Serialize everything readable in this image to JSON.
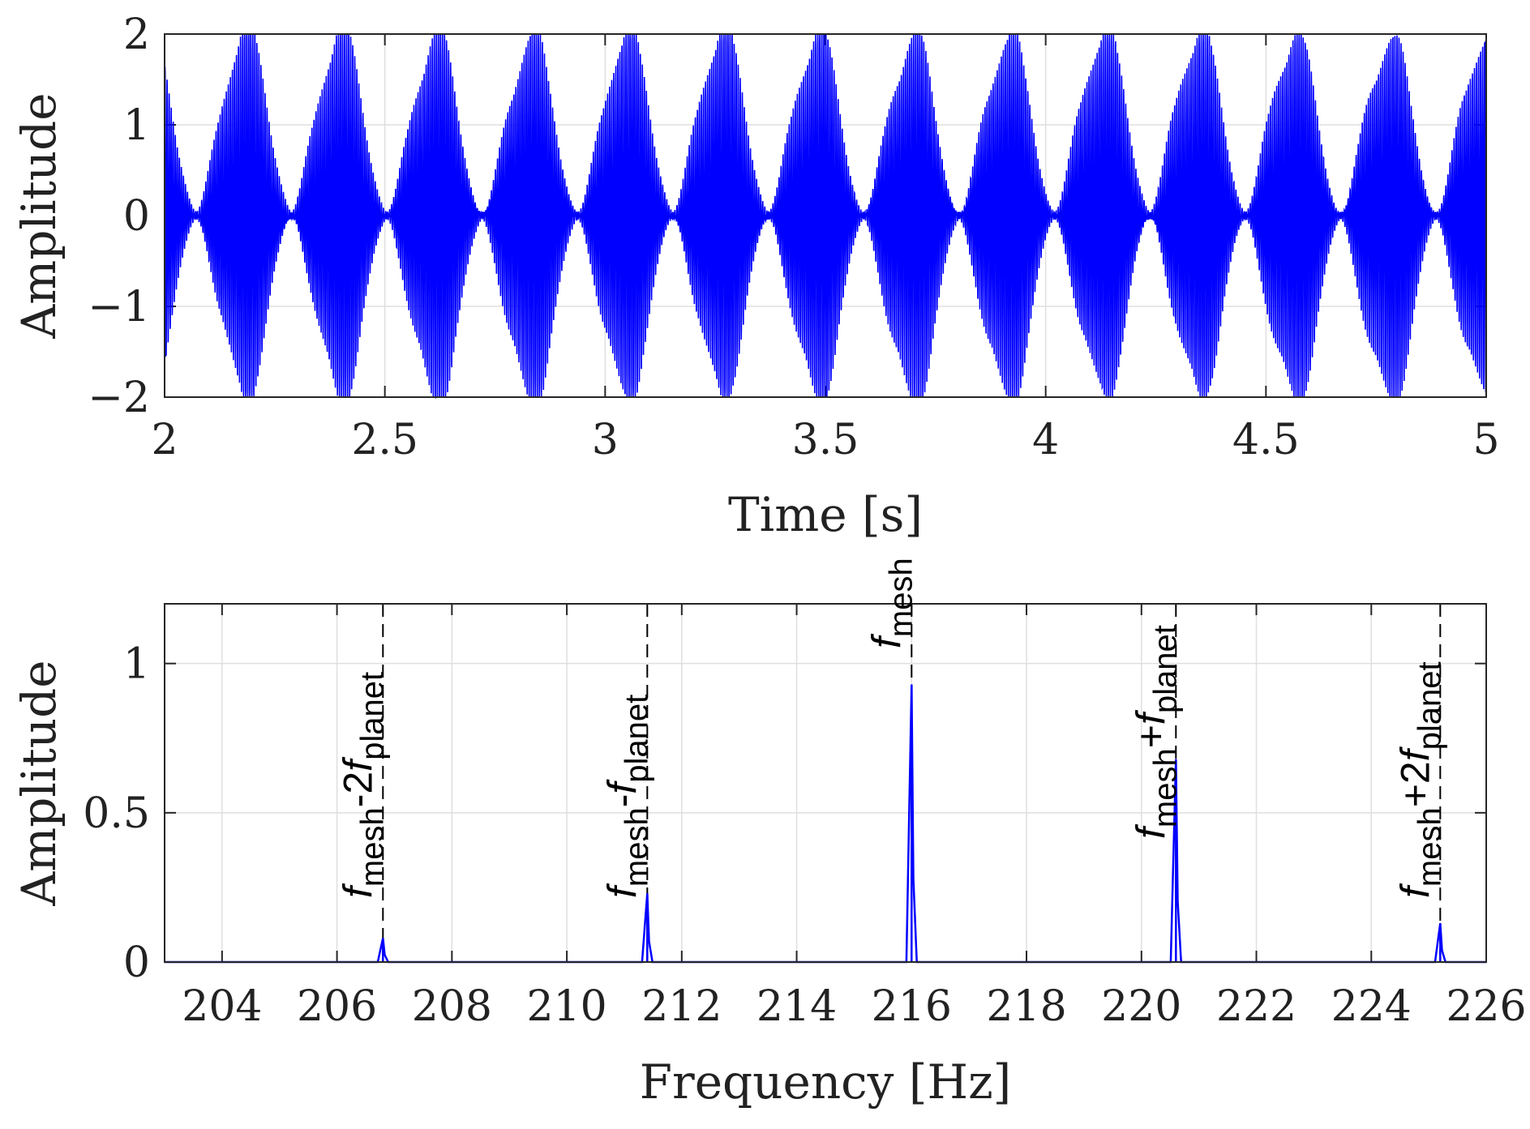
{
  "chart_data": [
    {
      "type": "line",
      "xlabel": "Time [s]",
      "ylabel": "Amplitude",
      "xlim": [
        2,
        5
      ],
      "ylim": [
        -2,
        2
      ],
      "xticks": [
        "2",
        "2.5",
        "3",
        "3.5",
        "4",
        "4.5",
        "5"
      ],
      "yticks": [
        "−2",
        "−1",
        "0",
        "1",
        "2"
      ],
      "grid": true,
      "line_color": "#0000ff",
      "signal": {
        "description_of_shape": "amplitude-modulated carrier",
        "carrier_frequency_hz": 216,
        "modulation_period_s": 0.2165,
        "envelope_peak": 2,
        "first_envelope_peak_s": 2.18
      }
    },
    {
      "type": "line",
      "xlabel": "Frequency [Hz]",
      "ylabel": "Amplitude",
      "xlim": [
        203,
        226
      ],
      "ylim": [
        0,
        1.2
      ],
      "xticks": [
        "204",
        "206",
        "208",
        "210",
        "212",
        "214",
        "216",
        "218",
        "220",
        "222",
        "224",
        "226"
      ],
      "yticks": [
        "0",
        "0.5",
        "1"
      ],
      "grid": true,
      "line_color": "#0000ff",
      "peaks": [
        {
          "x": 206.8,
          "y": 0.08
        },
        {
          "x": 211.4,
          "y": 0.23
        },
        {
          "x": 216.0,
          "y": 0.93
        },
        {
          "x": 220.6,
          "y": 0.68
        },
        {
          "x": 225.2,
          "y": 0.13
        }
      ],
      "annotations": [
        {
          "x": 206.8,
          "f": "f",
          "sub1": "mesh",
          "op": "-2",
          "f2": "f",
          "sub2": "planet"
        },
        {
          "x": 211.4,
          "f": "f",
          "sub1": "mesh",
          "op": "-",
          "f2": "f",
          "sub2": "planet"
        },
        {
          "x": 216.0,
          "f": "f",
          "sub1": "mesh",
          "op": "",
          "f2": "",
          "sub2": ""
        },
        {
          "x": 220.6,
          "f": "f",
          "sub1": "mesh",
          "op": "+",
          "f2": "f",
          "sub2": "planet"
        },
        {
          "x": 225.2,
          "f": "f",
          "sub1": "mesh",
          "op": "+2",
          "f2": "f",
          "sub2": "planet"
        }
      ]
    }
  ]
}
